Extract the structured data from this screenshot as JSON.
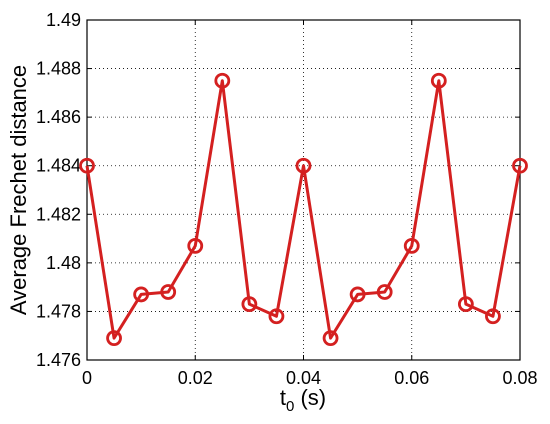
{
  "chart_data": {
    "type": "line",
    "xlabel": "t",
    "xlabel_subscript": "0",
    "xlabel_unit": " (s)",
    "ylabel": "Average Frechet distance",
    "xlim": [
      0,
      0.08
    ],
    "ylim": [
      1.476,
      1.49
    ],
    "x_ticks": [
      "0",
      "0.02",
      "0.04",
      "0.06",
      "0.08"
    ],
    "y_ticks": [
      "1.476",
      "1.478",
      "1.48",
      "1.482",
      "1.484",
      "1.486",
      "1.488",
      "1.49"
    ],
    "grid": true,
    "grid_style": "dotted",
    "series": [
      {
        "color": "#d42020",
        "marker": "circle",
        "x": [
          0,
          0.005,
          0.01,
          0.015,
          0.02,
          0.025,
          0.03,
          0.035,
          0.04,
          0.045,
          0.05,
          0.055,
          0.06,
          0.065,
          0.07,
          0.075,
          0.08
        ],
        "y": [
          1.484,
          1.4769,
          1.4787,
          1.4788,
          1.4807,
          1.4875,
          1.4783,
          1.4778,
          1.484,
          1.4769,
          1.4787,
          1.4788,
          1.4807,
          1.4875,
          1.4783,
          1.4778,
          1.484
        ]
      }
    ]
  }
}
